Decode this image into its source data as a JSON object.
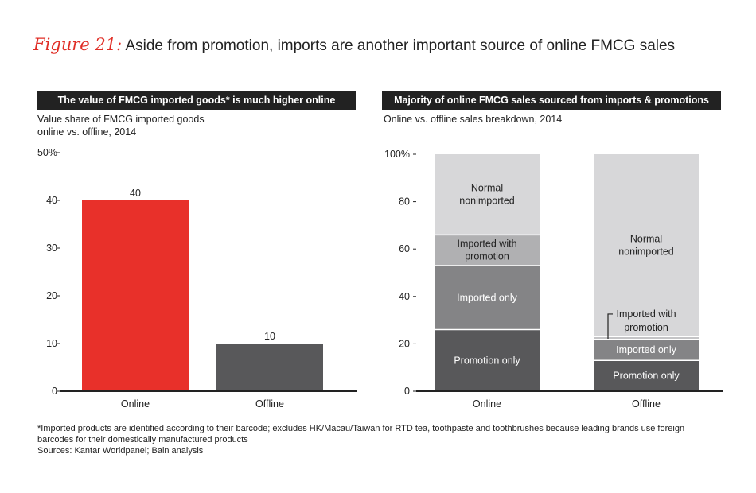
{
  "figure": {
    "label": "Figure 21:",
    "title": "Aside from promotion, imports are another important source of online FMCG sales"
  },
  "left_panel": {
    "header": "The value of FMCG imported goods* is much higher online",
    "subtitle_line1": "Value share of FMCG imported goods",
    "subtitle_line2": "online vs. offline, 2014"
  },
  "right_panel": {
    "header": "Majority of online FMCG sales sourced from imports & promotions",
    "subtitle": "Online vs. offline sales breakdown, 2014"
  },
  "chart_data": [
    {
      "type": "bar",
      "title": "The value of FMCG imported goods* is much higher online",
      "ylabel": "Value share of FMCG imported goods online vs. offline, 2014",
      "categories": [
        "Online",
        "Offline"
      ],
      "values": [
        40,
        10
      ],
      "data_labels": [
        "40",
        "10"
      ],
      "colors": [
        "#e8302a",
        "#58585a"
      ],
      "ylim": [
        0,
        50
      ],
      "yticks": [
        "0",
        "10",
        "20",
        "30",
        "40",
        "50%"
      ]
    },
    {
      "type": "bar",
      "stacked": true,
      "title": "Majority of online FMCG sales sourced from imports & promotions",
      "ylabel": "Online vs. offline sales breakdown, 2014",
      "categories": [
        "Online",
        "Offline"
      ],
      "ylim": [
        0,
        100
      ],
      "yticks": [
        "0",
        "20",
        "40",
        "60",
        "80",
        "100%"
      ],
      "series": [
        {
          "name": "Promotion only",
          "values": [
            26,
            13
          ],
          "color": "#58585a",
          "text_color": "#ffffff"
        },
        {
          "name": "Imported only",
          "values": [
            27,
            9
          ],
          "color": "#848486",
          "text_color": "#ffffff"
        },
        {
          "name": "Imported with promotion",
          "values": [
            13,
            1
          ],
          "color": "#b0b0b2",
          "text_color": "#222222"
        },
        {
          "name": "Normal nonimported",
          "values": [
            34,
            77
          ],
          "color": "#d7d7d9",
          "text_color": "#222222"
        }
      ]
    }
  ],
  "footnotes": {
    "line1": "*Imported products are identified according to their barcode; excludes HK/Macau/Taiwan for RTD tea, toothpaste and toothbrushes because leading brands use foreign",
    "line2": "barcodes for their domestically manufactured products",
    "line3": "Sources: Kantar Worldpanel; Bain analysis"
  }
}
